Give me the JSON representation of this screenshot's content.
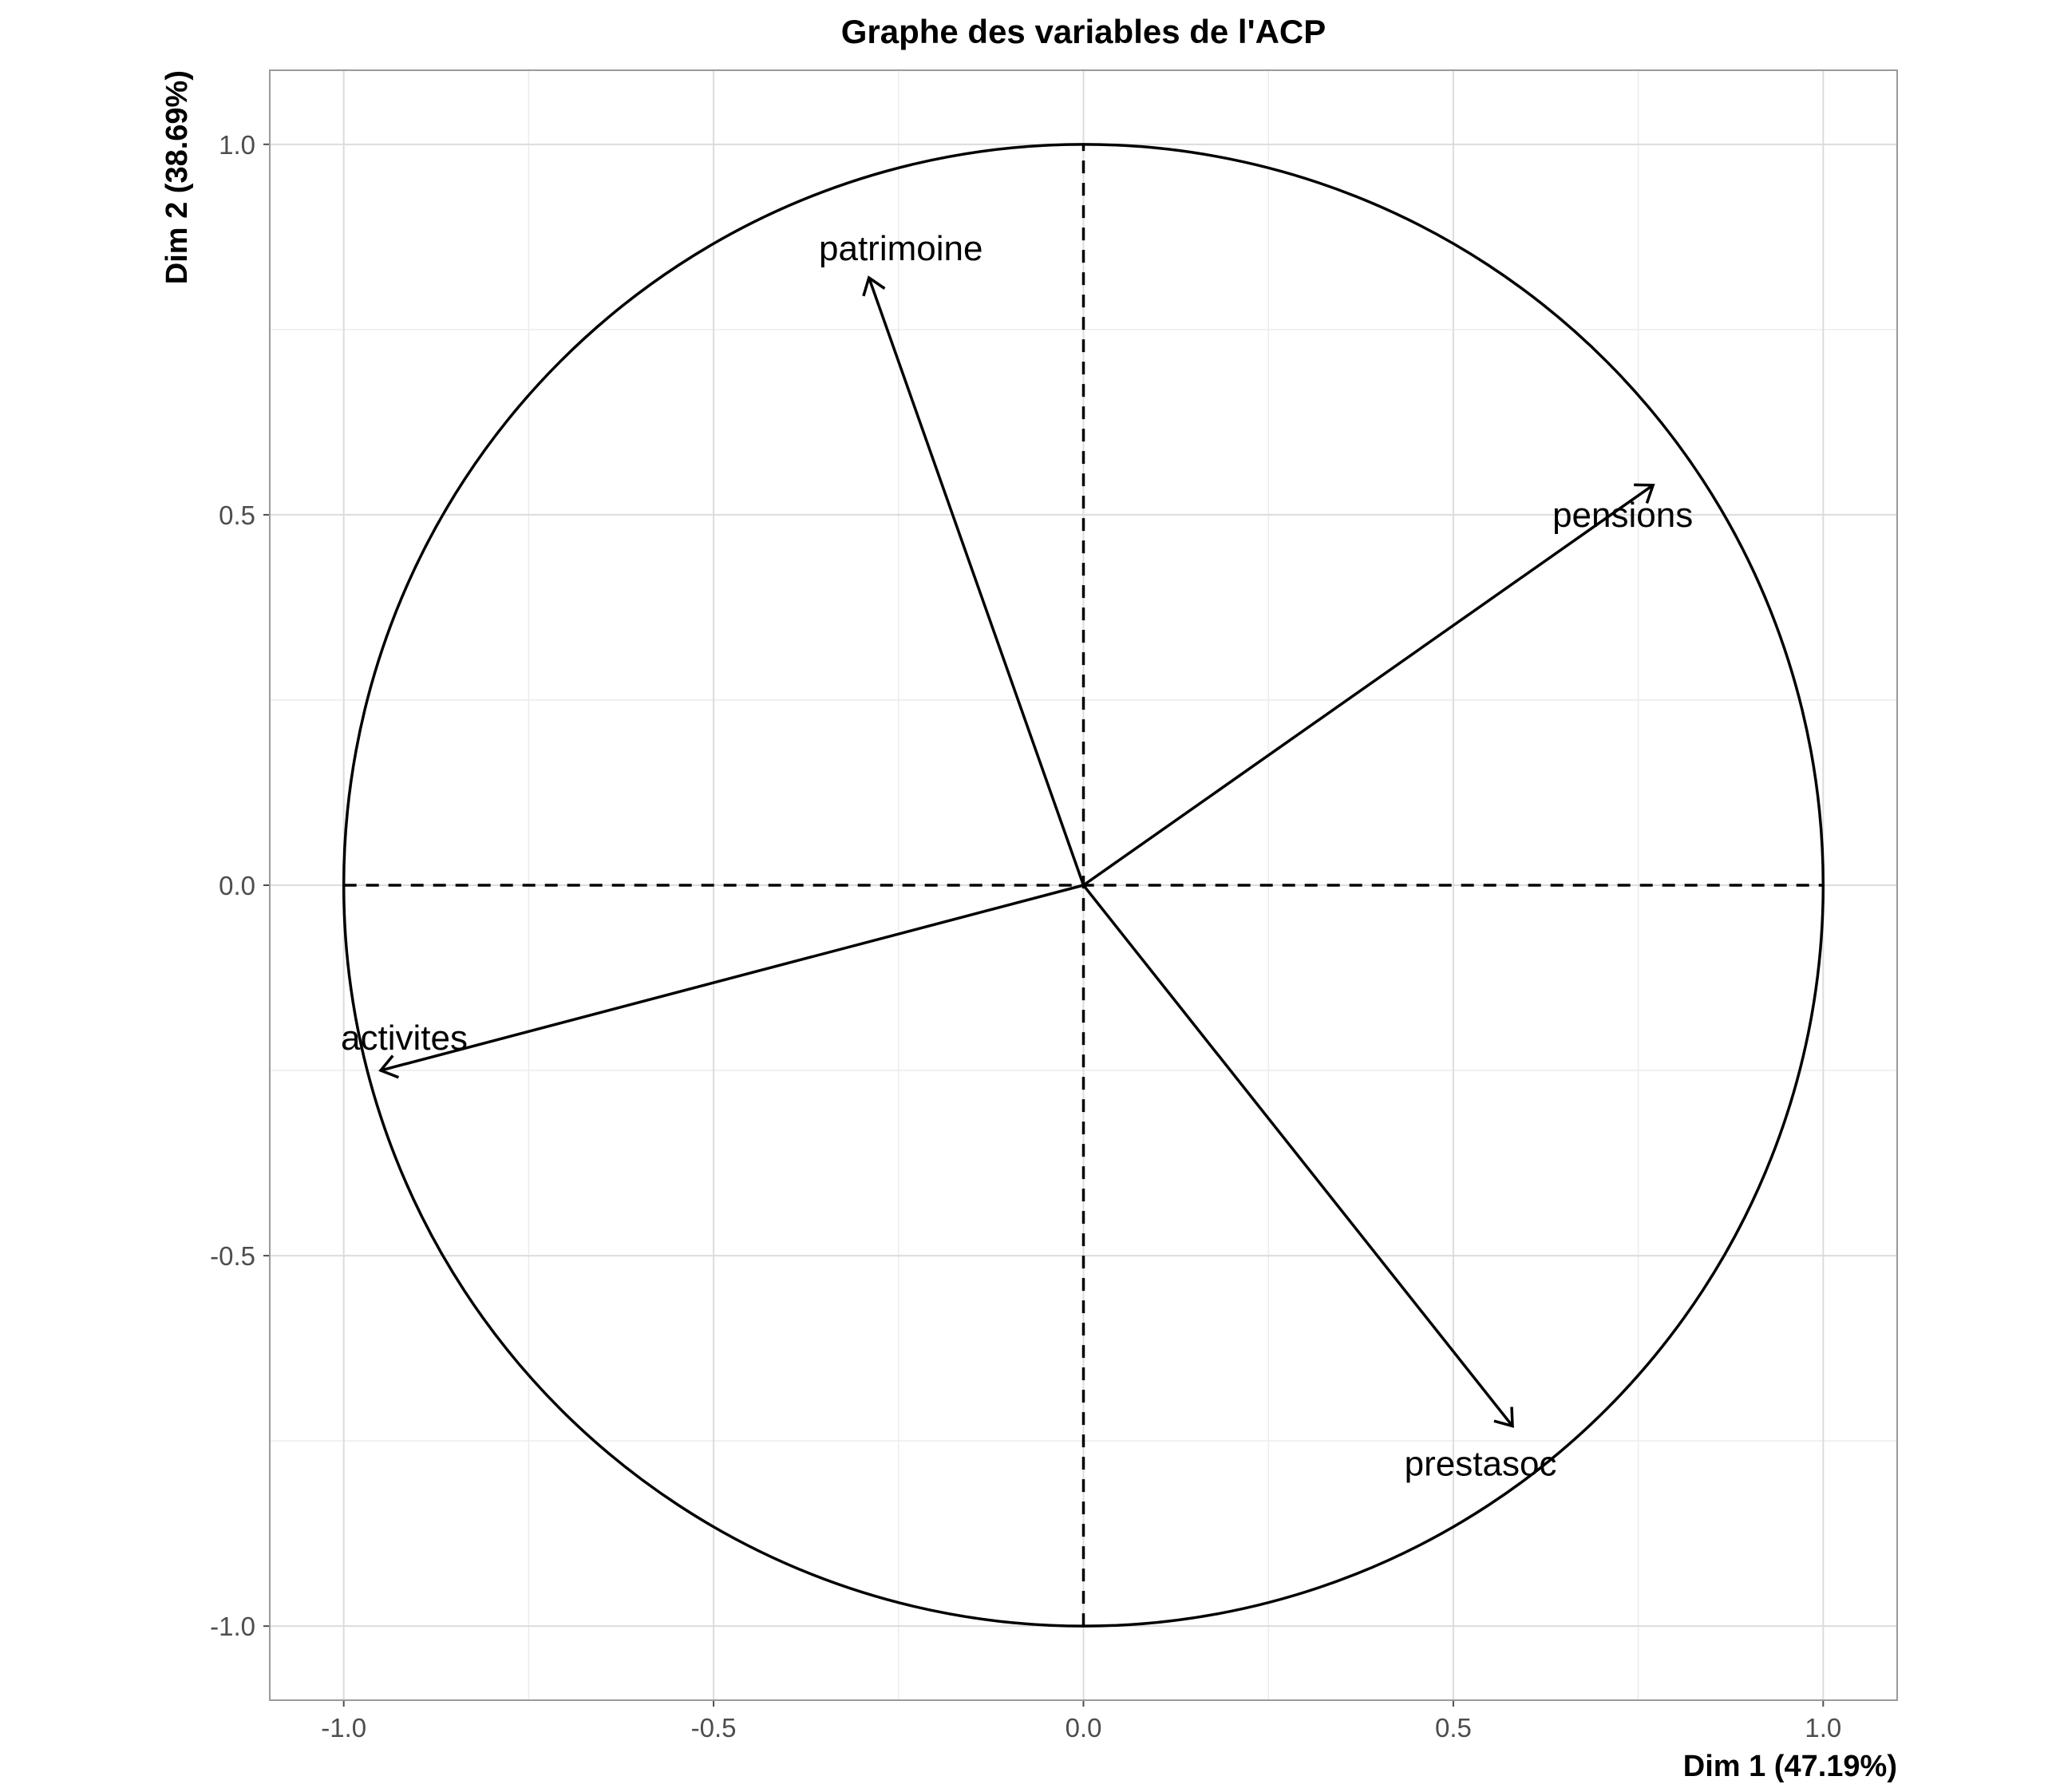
{
  "chart_data": {
    "type": "scatter",
    "title": "Graphe des variables de l'ACP",
    "xlabel": "Dim 1 (47.19%)",
    "ylabel": "Dim 2 (38.69%)",
    "xlim": [
      -1.1,
      1.1
    ],
    "ylim": [
      -1.1,
      1.1
    ],
    "x_ticks": [
      -1.0,
      -0.5,
      0.0,
      0.5,
      1.0
    ],
    "x_tick_labels": [
      "-1.0",
      "-0.5",
      "0.0",
      "0.5",
      "1.0"
    ],
    "y_ticks": [
      -1.0,
      -0.5,
      0.0,
      0.5,
      1.0
    ],
    "y_tick_labels": [
      "-1.0",
      "-0.5",
      "0.0",
      "0.5",
      "1.0"
    ],
    "grid": true,
    "unit_circle": true,
    "variables": [
      {
        "name": "patrimoine",
        "x": -0.29,
        "y": 0.82
      },
      {
        "name": "pensions",
        "x": 0.77,
        "y": 0.54
      },
      {
        "name": "activites",
        "x": -0.95,
        "y": -0.25
      },
      {
        "name": "prestasoc",
        "x": 0.58,
        "y": -0.73
      }
    ]
  }
}
